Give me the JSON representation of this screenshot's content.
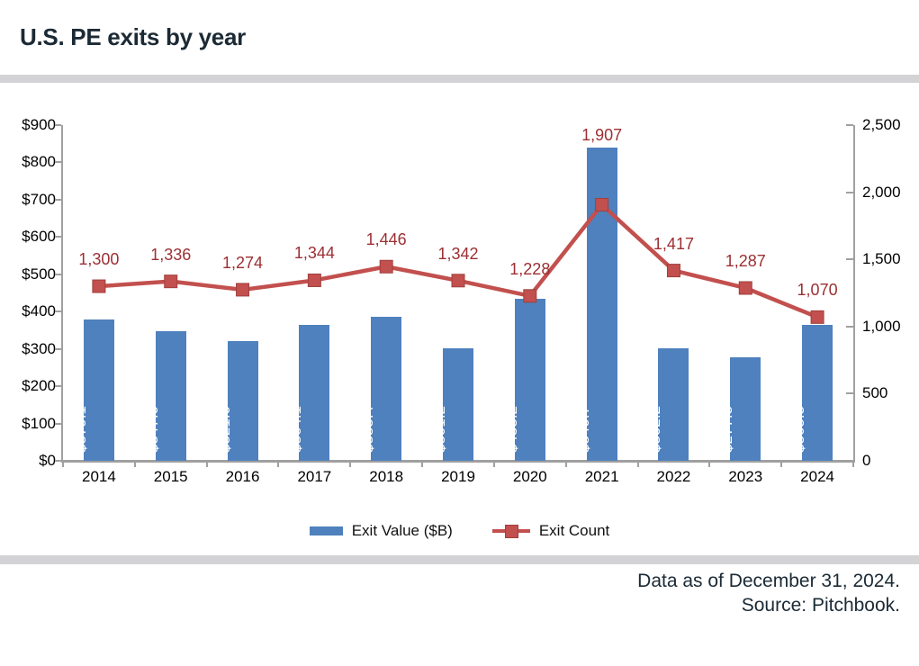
{
  "title": "U.S. PE exits by year",
  "colors": {
    "bar_blue": "#4e81bd",
    "line_red": "#c2504e",
    "marker_border": "#a0403d",
    "count_label_red": "#9c2f33",
    "bar_label_text": "#ffffff",
    "axis_gray": "#a0a0a0",
    "divider_gray": "#d3d3d5",
    "heading_navy": "#1b2a35"
  },
  "legend": {
    "items": [
      {
        "label": "Exit Value ($B)",
        "swatch": "bar-swatch"
      },
      {
        "label": "Exit Count",
        "swatch": "line-marker-swatch"
      }
    ]
  },
  "footer": {
    "line1": "Data as of December 31, 2024.",
    "line2": "Source: Pitchbook."
  },
  "chart_data": {
    "type": "bar",
    "subtype": "combo-bar-line-dual-axis",
    "title": "U.S. PE exits by year",
    "grid": false,
    "legend_position": "bottom",
    "categories": [
      "2014",
      "2015",
      "2016",
      "2017",
      "2018",
      "2019",
      "2020",
      "2021",
      "2022",
      "2023",
      "2024"
    ],
    "series": [
      {
        "name": "Exit Value ($B)",
        "type": "bar",
        "axis": "left",
        "values": [
          379.1,
          347.0,
          321.0,
          364.1,
          385.4,
          301.2,
          433.2,
          840.7,
          302.2,
          277.3,
          365.5
        ],
        "data_labels": [
          "$379.1",
          "$347.0",
          "$321.0",
          "$364.1",
          "$385.4",
          "$301.2",
          "$433.2",
          "$840.7",
          "$302.2",
          "$277.3",
          "$365.5"
        ]
      },
      {
        "name": "Exit Count",
        "type": "line",
        "axis": "right",
        "values": [
          1300,
          1336,
          1274,
          1344,
          1446,
          1342,
          1228,
          1907,
          1417,
          1287,
          1070
        ],
        "data_labels": [
          "1,300",
          "1,336",
          "1,274",
          "1,344",
          "1,446",
          "1,342",
          "1,228",
          "1,907",
          "1,417",
          "1,287",
          "1,070"
        ]
      }
    ],
    "left_axis": {
      "min": 0,
      "max": 900,
      "tick_values": [
        0,
        100,
        200,
        300,
        400,
        500,
        600,
        700,
        800,
        900
      ],
      "tick_labels": [
        "$0",
        "$100",
        "$200",
        "$300",
        "$400",
        "$500",
        "$600",
        "$700",
        "$800",
        "$900"
      ]
    },
    "right_axis": {
      "min": 0,
      "max": 2500,
      "tick_values": [
        0,
        500,
        1000,
        1500,
        2000,
        2500
      ],
      "tick_labels": [
        "0",
        "500",
        "1,000",
        "1,500",
        "2,000",
        "2,500"
      ]
    }
  }
}
